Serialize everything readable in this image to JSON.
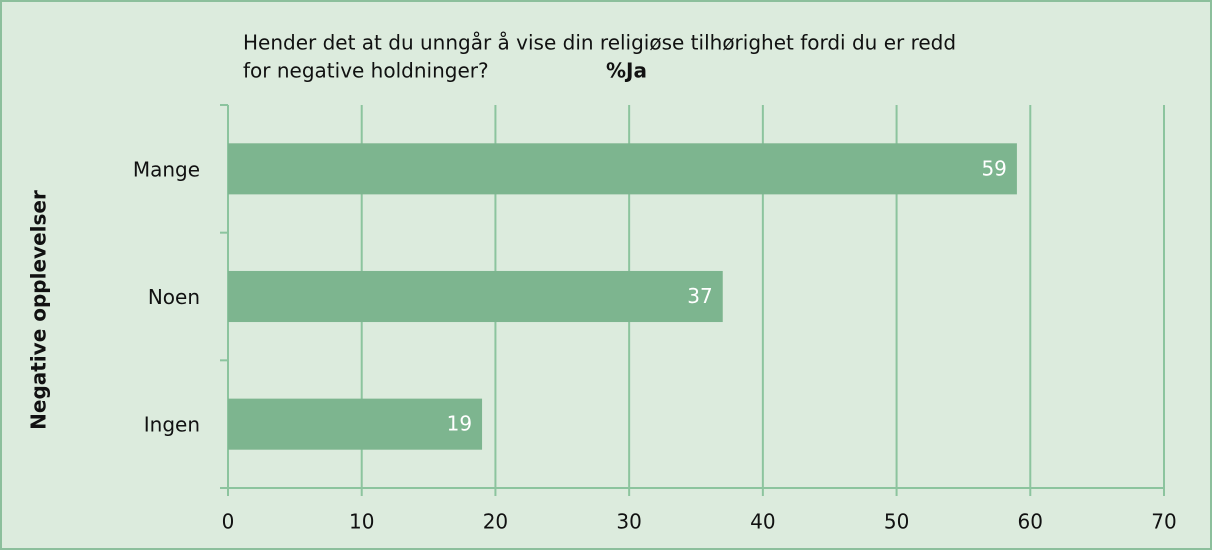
{
  "chart_data": {
    "type": "bar",
    "orientation": "horizontal",
    "title": [
      "Hender det at du unngår å vise din religiøse tilhørighet fordi du er redd",
      "for negative holdninger?"
    ],
    "subtitle": "%Ja",
    "ylabel": "Negative opplevelser",
    "categories": [
      "Mange",
      "Noen",
      "Ingen"
    ],
    "values": [
      59,
      37,
      19
    ],
    "color": "#7db58f",
    "xlim": [
      0,
      70
    ],
    "xticks": [
      0,
      10,
      20,
      30,
      40,
      50,
      60,
      70
    ],
    "grid": true
  }
}
